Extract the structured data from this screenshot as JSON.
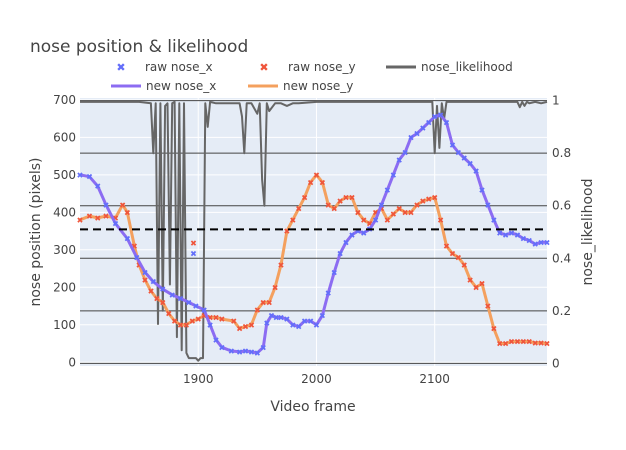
{
  "chart_data": {
    "type": "line",
    "title": "nose position & likelihood",
    "xlabel": "Video frame",
    "ylabel": "nose position (pixels)",
    "y2label": "nose_likelihood",
    "xlim": [
      1800,
      2195
    ],
    "ylim": [
      -10,
      705
    ],
    "y2lim": [
      -0.01,
      1.01
    ],
    "x_ticks": [
      1900,
      2000,
      2100
    ],
    "y_ticks": [
      0,
      100,
      200,
      300,
      400,
      500,
      600,
      700
    ],
    "y2_ticks": [
      0,
      0.2,
      0.4,
      0.6,
      0.8,
      1
    ],
    "y2_tick_labels": [
      "0",
      "0.2",
      "0.4",
      "0.6",
      "0.8",
      "1"
    ],
    "threshold_line": {
      "axis": "y2",
      "value": 0.51,
      "style": "dashed",
      "color": "#000000"
    },
    "legend": [
      {
        "name": "raw nose_x",
        "symbol": "x-marker",
        "color": "#636efa"
      },
      {
        "name": "raw nose_y",
        "symbol": "x-marker",
        "color": "#ef553b"
      },
      {
        "name": "nose_likelihood",
        "symbol": "line",
        "color": "#666666"
      },
      {
        "name": "new nose_x",
        "symbol": "line",
        "color": "#8c6cf2"
      },
      {
        "name": "new nose_y",
        "symbol": "line",
        "color": "#f4a05e"
      }
    ],
    "series": [
      {
        "name": "new nose_x",
        "axis": "y",
        "color": "#8c6cf2",
        "marker_color": "#636efa",
        "x": [
          1800,
          1808,
          1815,
          1822,
          1830,
          1840,
          1848,
          1855,
          1862,
          1870,
          1878,
          1885,
          1892,
          1898,
          1905,
          1910,
          1915,
          1920,
          1928,
          1935,
          1940,
          1945,
          1950,
          1955,
          1958,
          1962,
          1966,
          1970,
          1975,
          1980,
          1985,
          1990,
          1995,
          2000,
          2005,
          2010,
          2015,
          2020,
          2025,
          2030,
          2035,
          2040,
          2045,
          2050,
          2055,
          2060,
          2065,
          2070,
          2075,
          2080,
          2085,
          2090,
          2095,
          2100,
          2105,
          2110,
          2115,
          2120,
          2125,
          2130,
          2135,
          2140,
          2145,
          2150,
          2155,
          2160,
          2165,
          2170,
          2175,
          2180,
          2185,
          2190,
          2195
        ],
        "y": [
          500,
          495,
          470,
          420,
          370,
          330,
          280,
          240,
          215,
          195,
          180,
          170,
          160,
          150,
          140,
          100,
          60,
          40,
          30,
          28,
          30,
          28,
          25,
          40,
          105,
          125,
          120,
          120,
          115,
          100,
          95,
          110,
          110,
          100,
          125,
          185,
          240,
          290,
          320,
          340,
          350,
          345,
          355,
          380,
          420,
          460,
          500,
          540,
          560,
          600,
          610,
          625,
          640,
          655,
          660,
          640,
          580,
          560,
          545,
          530,
          510,
          460,
          420,
          380,
          345,
          340,
          345,
          340,
          330,
          325,
          315,
          320,
          320
        ]
      },
      {
        "name": "new nose_y",
        "axis": "y",
        "color": "#f4a05e",
        "marker_color": "#ef553b",
        "x": [
          1800,
          1808,
          1815,
          1822,
          1830,
          1836,
          1840,
          1846,
          1850,
          1855,
          1860,
          1865,
          1870,
          1875,
          1880,
          1885,
          1890,
          1895,
          1900,
          1905,
          1910,
          1915,
          1920,
          1930,
          1935,
          1940,
          1945,
          1950,
          1955,
          1960,
          1965,
          1970,
          1975,
          1980,
          1985,
          1990,
          1995,
          2000,
          2005,
          2010,
          2015,
          2020,
          2025,
          2030,
          2035,
          2040,
          2045,
          2050,
          2055,
          2060,
          2065,
          2070,
          2075,
          2080,
          2085,
          2090,
          2095,
          2100,
          2105,
          2110,
          2115,
          2120,
          2125,
          2130,
          2135,
          2140,
          2145,
          2150,
          2155,
          2160,
          2165,
          2170,
          2175,
          2180,
          2185,
          2190,
          2195
        ],
        "y": [
          380,
          390,
          385,
          390,
          385,
          420,
          400,
          310,
          260,
          220,
          190,
          170,
          160,
          130,
          110,
          100,
          100,
          110,
          115,
          125,
          120,
          120,
          115,
          110,
          90,
          95,
          100,
          140,
          160,
          160,
          200,
          260,
          350,
          380,
          410,
          440,
          480,
          500,
          480,
          420,
          410,
          430,
          440,
          440,
          400,
          380,
          370,
          400,
          410,
          380,
          395,
          410,
          400,
          400,
          420,
          430,
          435,
          440,
          380,
          310,
          290,
          280,
          260,
          220,
          200,
          210,
          150,
          90,
          50,
          50,
          55,
          55,
          55,
          55,
          52,
          52,
          50
        ]
      },
      {
        "name": "nose_likelihood",
        "axis": "y2",
        "color": "#666666",
        "x": [
          1800,
          1850,
          1860,
          1862,
          1864,
          1866,
          1868,
          1870,
          1872,
          1874,
          1876,
          1878,
          1880,
          1882,
          1884,
          1886,
          1888,
          1890,
          1892,
          1894,
          1896,
          1898,
          1900,
          1902,
          1904,
          1906,
          1908,
          1910,
          1915,
          1920,
          1925,
          1930,
          1935,
          1937,
          1939,
          1941,
          1945,
          1950,
          1952,
          1954,
          1956,
          1958,
          1960,
          1965,
          1970,
          1975,
          1980,
          1985,
          2000,
          2050,
          2098,
          2100,
          2102,
          2104,
          2106,
          2108,
          2110,
          2160,
          2170,
          2172,
          2174,
          2176,
          2178,
          2180,
          2185,
          2190,
          2195
        ],
        "y": [
          0.995,
          0.995,
          0.99,
          0.8,
          0.99,
          0.15,
          0.99,
          0.2,
          0.98,
          0.99,
          0.3,
          0.99,
          0.995,
          0.1,
          0.99,
          0.05,
          0.99,
          0.04,
          0.02,
          0.02,
          0.02,
          0.02,
          0.01,
          0.02,
          0.02,
          0.99,
          0.9,
          0.995,
          0.99,
          0.99,
          0.99,
          0.99,
          0.99,
          0.94,
          0.8,
          0.99,
          0.99,
          0.95,
          0.99,
          0.7,
          0.6,
          0.99,
          0.96,
          0.99,
          0.99,
          0.98,
          0.99,
          0.99,
          0.995,
          0.995,
          0.995,
          0.8,
          0.98,
          0.82,
          0.99,
          0.93,
          0.995,
          0.995,
          0.995,
          0.975,
          0.995,
          0.98,
          0.995,
          0.99,
          0.995,
          0.99,
          0.995
        ]
      }
    ],
    "raw_points": [
      {
        "name": "raw nose_x",
        "color": "#636efa",
        "x": [
          1896
        ],
        "y": [
          290
        ]
      },
      {
        "name": "raw nose_y",
        "color": "#ef553b",
        "x": [
          1896
        ],
        "y": [
          318
        ]
      }
    ]
  }
}
